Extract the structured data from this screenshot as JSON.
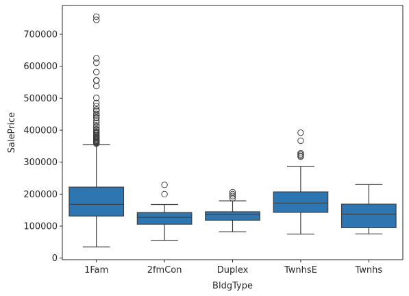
{
  "chart_data": {
    "type": "box",
    "title": "",
    "xlabel": "BldgType",
    "ylabel": "SalePrice",
    "ylim": [
      -5000,
      790000
    ],
    "yticks": [
      0,
      100000,
      200000,
      300000,
      400000,
      500000,
      600000,
      700000
    ],
    "ytick_labels": [
      "0",
      "100000",
      "200000",
      "300000",
      "400000",
      "500000",
      "600000",
      "700000"
    ],
    "grid": false,
    "box_color": "#2e76b2",
    "line_color": "#3d3d3d",
    "categories": [
      "1Fam",
      "2fmCon",
      "Duplex",
      "TwnhsE",
      "Twnhs"
    ],
    "boxes": [
      {
        "whisker_low": 34900,
        "q1": 131500,
        "median": 167900,
        "q3": 222000,
        "whisker_high": 355000,
        "outliers": [
          358000,
          360000,
          362000,
          365000,
          367000,
          370000,
          372000,
          375000,
          377000,
          380000,
          383000,
          385000,
          390000,
          392000,
          395000,
          400000,
          403000,
          410000,
          415000,
          423000,
          430000,
          438000,
          440000,
          446000,
          451000,
          460000,
          465000,
          475000,
          485000,
          501000,
          538000,
          555000,
          556000,
          582000,
          611000,
          625000,
          745000,
          755000
        ]
      },
      {
        "whisker_low": 55000,
        "q1": 106000,
        "median": 127500,
        "q3": 142500,
        "whisker_high": 167500,
        "outliers": [
          200000,
          228950
        ]
      },
      {
        "whisker_low": 82000,
        "q1": 118500,
        "median": 135980,
        "q3": 145000,
        "whisker_high": 179000,
        "outliers": [
          187000,
          194000,
          200000,
          206300
        ]
      },
      {
        "whisker_low": 75000,
        "q1": 143000,
        "median": 172200,
        "q3": 207000,
        "whisker_high": 287000,
        "outliers": [
          317000,
          320000,
          324000,
          328000,
          367000,
          392000
        ]
      },
      {
        "whisker_low": 75500,
        "q1": 95000,
        "median": 137500,
        "q3": 168750,
        "whisker_high": 230000,
        "outliers": []
      }
    ]
  }
}
